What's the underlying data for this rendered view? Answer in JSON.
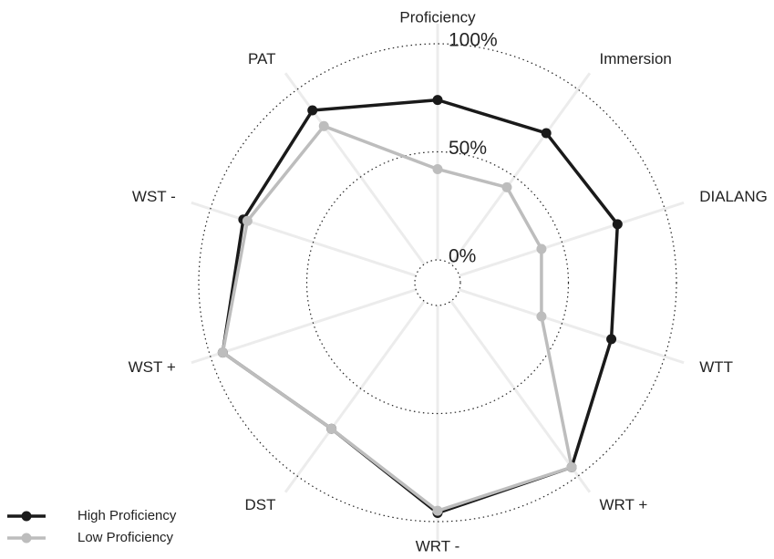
{
  "chart_data": {
    "type": "radar",
    "categories": [
      "Proficiency",
      "Immersion",
      "DIALANG",
      "WTT",
      "WRT +",
      "WRT -",
      "DST",
      "WST +",
      "WST -",
      "PAT"
    ],
    "ylim": [
      0,
      100
    ],
    "yticks": [
      {
        "value": 0,
        "label": "0%"
      },
      {
        "value": 50,
        "label": "50%"
      },
      {
        "value": 100,
        "label": "100%"
      }
    ],
    "series": [
      {
        "name": "High Proficiency",
        "color": "#1a1a1a",
        "values": [
          74,
          75,
          77,
          74,
          95,
          96,
          73,
          94,
          84,
          88
        ]
      },
      {
        "name": "Low Proficiency",
        "color": "#bdbdbd",
        "values": [
          42,
          44,
          40,
          40,
          95,
          95,
          73,
          94,
          82,
          79
        ]
      }
    ]
  }
}
